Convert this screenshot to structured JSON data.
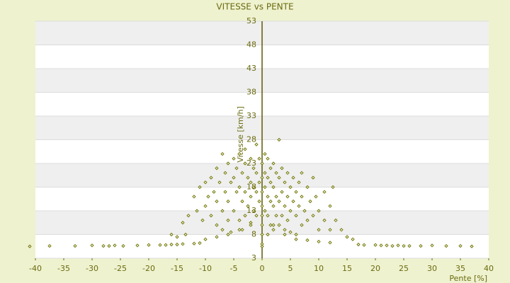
{
  "chart_data": {
    "type": "scatter",
    "title": "VITESSE vs PENTE",
    "x_label": "Pente [%]",
    "y_label": "Vitesse [km/h]",
    "color": "#6b7000",
    "grid": true,
    "xlim": [
      -40,
      40
    ],
    "xticks": [
      -40,
      -35,
      -30,
      -25,
      -20,
      -15,
      -10,
      -5,
      0,
      5,
      10,
      15,
      20,
      25,
      30,
      35,
      40
    ],
    "ylim": [
      3,
      53
    ],
    "yticks": [
      3,
      8,
      13,
      18,
      23,
      28,
      33,
      38,
      43,
      48,
      53
    ],
    "x": [
      -41,
      -37.5,
      -33,
      -30,
      -28,
      -27,
      -26,
      -24.5,
      -22,
      -20,
      -18,
      -17,
      -16,
      -15,
      -14,
      -12,
      -11,
      17,
      18,
      20,
      21,
      22,
      23,
      24,
      25,
      26,
      28,
      30,
      32.5,
      35,
      37,
      -14,
      -13,
      -12,
      -11.5,
      -11,
      -10.5,
      -10,
      -10,
      -9.5,
      -9,
      -9,
      -8.5,
      -8,
      -8,
      -8,
      -7.5,
      -7,
      -7,
      -7,
      -6.5,
      -6.5,
      -6,
      -6,
      -6,
      -5.5,
      -5.5,
      -5,
      -5,
      -5,
      -4.5,
      -4.5,
      -4,
      -4,
      -4,
      -3.5,
      -3.5,
      -3.5,
      -3,
      -3,
      -3,
      -3,
      -2.5,
      -2.5,
      -2,
      -2,
      -2,
      -2,
      -1.5,
      -1.5,
      -1.5,
      -1,
      -1,
      -1,
      -1,
      -0.5,
      -0.5,
      -0.5,
      0,
      0,
      0,
      0,
      0,
      0,
      0.5,
      0.5,
      0.5,
      0.5,
      1,
      1,
      1,
      1,
      1,
      1.5,
      1.5,
      1.5,
      1.5,
      2,
      2,
      2,
      2,
      2.5,
      2.5,
      2.5,
      3,
      3,
      3,
      3,
      3.5,
      3.5,
      3.5,
      4,
      4,
      4,
      4.5,
      4.5,
      4.5,
      5,
      5,
      5,
      5.5,
      5.5,
      6,
      6,
      6,
      6.5,
      6.5,
      7,
      7,
      7,
      7.5,
      8,
      8,
      8.5,
      9,
      9,
      9.5,
      10,
      10,
      11,
      11,
      12,
      12,
      12.5,
      13,
      14,
      15,
      16,
      -16,
      -15,
      -13.5,
      -10,
      -8,
      -6,
      -4,
      -2,
      2,
      4,
      6,
      8,
      10,
      12,
      0,
      0,
      0
    ],
    "y": [
      5.5,
      5.6,
      5.6,
      5.7,
      5.6,
      5.6,
      5.7,
      5.6,
      5.7,
      5.8,
      5.8,
      5.8,
      5.9,
      5.9,
      6,
      6.1,
      6.2,
      5.9,
      5.8,
      5.8,
      5.7,
      5.7,
      5.6,
      5.7,
      5.6,
      5.6,
      5.6,
      5.7,
      5.6,
      5.6,
      5.5,
      10.5,
      12,
      16,
      13,
      18,
      11,
      19,
      14,
      16,
      20,
      12,
      17,
      22,
      15,
      10,
      19,
      25,
      13,
      9,
      21,
      17,
      23,
      15,
      11,
      19,
      8.5,
      24,
      20,
      13,
      17,
      22,
      25,
      18,
      11,
      21,
      15,
      9,
      26,
      23,
      17,
      12,
      20,
      14,
      24,
      19,
      16,
      10,
      22,
      18,
      13,
      27,
      21,
      17,
      12,
      24,
      19,
      15,
      23,
      20,
      17,
      14,
      10,
      6,
      25,
      21,
      18,
      13,
      24,
      20,
      16,
      12,
      8,
      22,
      19,
      15,
      10,
      23,
      18,
      14,
      9,
      21,
      16,
      12,
      28,
      20,
      15,
      10,
      22,
      17,
      12,
      19,
      14,
      9,
      21,
      16,
      11,
      18,
      13,
      8.5,
      20,
      15,
      17,
      12,
      8,
      19,
      14,
      21,
      16,
      10,
      13,
      18,
      11,
      15,
      20,
      12,
      16,
      13,
      9,
      17,
      11,
      14,
      9,
      18,
      11,
      9,
      7.5,
      7,
      8,
      7.5,
      8,
      7,
      7.5,
      8,
      9,
      10.5,
      10,
      8,
      7,
      6.8,
      6.5,
      6.3,
      5.5,
      8,
      12
    ]
  }
}
